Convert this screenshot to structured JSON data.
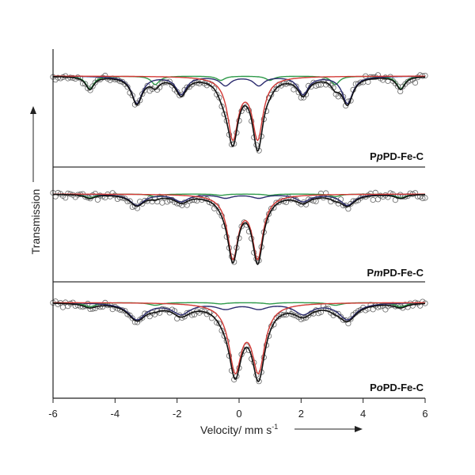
{
  "chart_data": {
    "type": "line",
    "xlabel": "Velocity/ mm s",
    "xlabel_superscript": "-1",
    "ylabel": "Transmission",
    "xlim": [
      -6,
      6
    ],
    "x_ticks": [
      -6,
      -4,
      -2,
      0,
      2,
      4,
      6
    ],
    "x_tick_labels": [
      "-6",
      "-4",
      "-2",
      "0",
      "2",
      "4",
      "6"
    ],
    "grid": false,
    "colors": {
      "data": "#666666",
      "fit": "#111111",
      "doublet": "#d23a36",
      "sextet1": "#2b2b6e",
      "sextet2": "#2f9a4a"
    },
    "panels": [
      {
        "label_parts": [
          "P",
          "p",
          "PD-Fe-C"
        ],
        "components": [
          {
            "name": "doublet",
            "type": "doublet",
            "center": 0.2,
            "split": 0.8,
            "width": 0.42,
            "depth": 0.85
          },
          {
            "name": "sextet1",
            "type": "sextet",
            "center": 0.1,
            "field": 21,
            "width": 0.42,
            "depth": 0.38
          },
          {
            "name": "sextet2",
            "type": "sextet",
            "center": 0.2,
            "field": 31,
            "width": 0.32,
            "depth": 0.18
          }
        ]
      },
      {
        "label_parts": [
          "P",
          "m",
          "PD-Fe-C"
        ],
        "components": [
          {
            "name": "doublet",
            "type": "doublet",
            "center": 0.2,
            "split": 0.8,
            "width": 0.42,
            "depth": 0.78
          },
          {
            "name": "sextet1",
            "type": "sextet",
            "center": 0.1,
            "field": 21,
            "width": 0.55,
            "depth": 0.14
          },
          {
            "name": "sextet2",
            "type": "sextet",
            "center": 0.2,
            "field": 31,
            "width": 0.4,
            "depth": 0.05
          }
        ]
      },
      {
        "label_parts": [
          "P",
          "o",
          "PD-Fe-C"
        ],
        "components": [
          {
            "name": "doublet",
            "type": "doublet",
            "center": 0.25,
            "split": 0.75,
            "width": 0.5,
            "depth": 0.78
          },
          {
            "name": "sextet1",
            "type": "sextet",
            "center": 0.1,
            "field": 21,
            "width": 0.7,
            "depth": 0.2
          },
          {
            "name": "sextet2",
            "type": "sextet",
            "center": 0.2,
            "field": 31,
            "width": 0.5,
            "depth": 0.05
          }
        ]
      }
    ]
  }
}
